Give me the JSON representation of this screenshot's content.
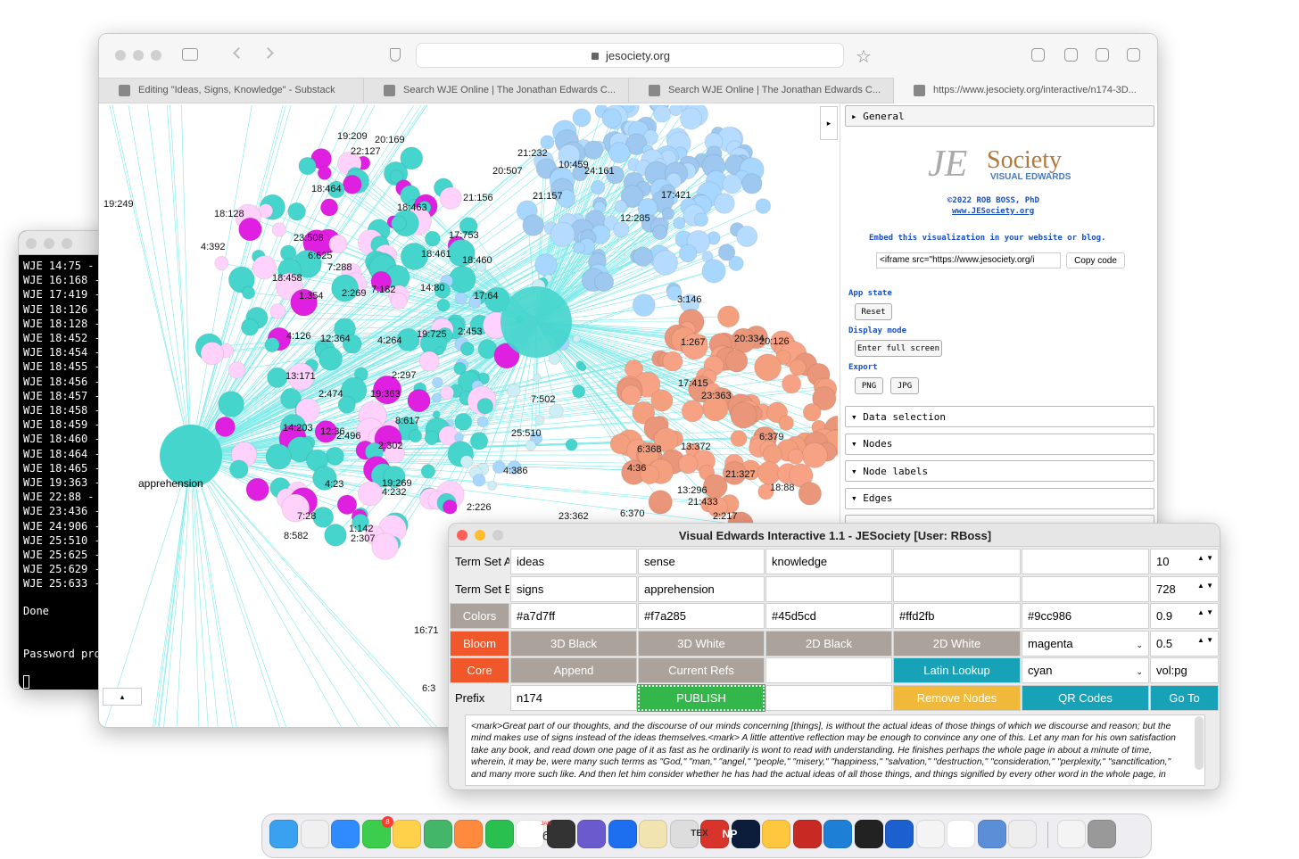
{
  "terminal": {
    "lines": [
      "WJE 14:75 - S",
      "WJE 16:168 -",
      "WJE 17:419 -",
      "WJE 18:126 -",
      "WJE 18:128 -",
      "WJE 18:452 -",
      "WJE 18:454 -",
      "WJE 18:455 -",
      "WJE 18:456 -",
      "WJE 18:457 -",
      "WJE 18:458 -",
      "WJE 18:459 -",
      "WJE 18:460 -",
      "WJE 18:464 -",
      "WJE 18:465 -",
      "WJE 19:363 -",
      "WJE 22:88 - S",
      "WJE 23:436 -",
      "WJE 24:906 -",
      "WJE 25:510 -",
      "WJE 25:625 -",
      "WJE 25:629 -",
      "WJE 25:633 -"
    ],
    "done": "Done",
    "password": "Password prot"
  },
  "browser": {
    "url": "jesociety.org",
    "tabs": [
      "Editing \"Ideas, Signs, Knowledge\" - Substack",
      "Search WJE Online | The Jonathan Edwards C...",
      "Search WJE Online | The Jonathan Edwards C...",
      "https://www.jesociety.org/interactive/n174-3D..."
    ]
  },
  "graph": {
    "hub_label": "apprehension",
    "labels": [
      "18:128",
      "4:392",
      "19:249",
      "19:209",
      "20:169",
      "22:127",
      "18:464",
      "18:463",
      "17:753",
      "18:460",
      "18:461",
      "6:625",
      "7:288",
      "18:458",
      "1:354",
      "2:269",
      "7:182",
      "14:80",
      "17:64",
      "4:126",
      "12:364",
      "4:264",
      "19:725",
      "2:453",
      "2:297",
      "2:474",
      "13:171",
      "19:363",
      "8:617",
      "2:302",
      "2:496",
      "12:36",
      "14:203",
      "7:502",
      "25:510",
      "4:386",
      "19:269",
      "4:232",
      "4:23",
      "2:226",
      "23:362",
      "21:327",
      "13:372",
      "6:368",
      "4:36",
      "6:370",
      "21:433",
      "2:217",
      "13:296",
      "18:88",
      "6:379",
      "23:363",
      "17:415",
      "20:126",
      "20:334",
      "1:267",
      "3:146",
      "12:285",
      "17:421",
      "10:459",
      "24:161",
      "21:232",
      "21:157",
      "21:156",
      "20:507",
      "23:508",
      "16:71",
      "6:3",
      "8:582",
      "2:307",
      "7:28",
      "1:142"
    ]
  },
  "panel": {
    "general": "▸ General",
    "logo_je": "JE",
    "logo_society": "Society",
    "logo_sub": "VISUAL EDWARDS",
    "copyright": "©2022 ROB BOSS, PhD",
    "site": "www.JESociety.org",
    "embed": "Embed this visualization in your website or blog.",
    "iframe": "<iframe src=\"https://www.jesociety.org/i",
    "copy": "Copy code",
    "app_state": "App state",
    "reset": "Reset",
    "display_mode": "Display mode",
    "fullscreen": "Enter full screen",
    "export": "Export",
    "png": "PNG",
    "jpg": "JPG",
    "folders": [
      "▾ Data selection",
      "▾ Nodes",
      "▾ Node labels",
      "▾ Edges"
    ]
  },
  "app": {
    "title": "Visual Edwards Interactive 1.1 - JESociety [User: RBoss]",
    "rows": [
      [
        {
          "t": "label",
          "text": "Term Set A"
        },
        {
          "t": "input",
          "text": "ideas"
        },
        {
          "t": "input",
          "text": "sense"
        },
        {
          "t": "input",
          "text": "knowledge"
        },
        {
          "t": "input"
        },
        {
          "t": "input"
        },
        {
          "t": "spin",
          "text": "10"
        }
      ],
      [
        {
          "t": "label",
          "text": "Term Set B"
        },
        {
          "t": "input",
          "text": "signs"
        },
        {
          "t": "input",
          "text": "apprehension"
        },
        {
          "t": "input"
        },
        {
          "t": "input"
        },
        {
          "t": "input"
        },
        {
          "t": "spin",
          "text": "728"
        }
      ],
      [
        {
          "t": "gray",
          "text": "Colors"
        },
        {
          "t": "input",
          "text": "#a7d7ff"
        },
        {
          "t": "input",
          "text": "#f7a285"
        },
        {
          "t": "input",
          "text": "#45d5cd"
        },
        {
          "t": "input",
          "text": "#ffd2fb"
        },
        {
          "t": "input",
          "text": "#9cc986"
        },
        {
          "t": "spin",
          "text": "0.9"
        }
      ],
      [
        {
          "t": "orange",
          "text": "Bloom"
        },
        {
          "t": "gray",
          "text": "3D Black"
        },
        {
          "t": "gray",
          "text": "3D White"
        },
        {
          "t": "gray",
          "text": "2D Black"
        },
        {
          "t": "gray",
          "text": "2D White"
        },
        {
          "t": "select",
          "text": "magenta"
        },
        {
          "t": "spin",
          "text": "0.5"
        }
      ],
      [
        {
          "t": "orange",
          "text": "Core"
        },
        {
          "t": "gray",
          "text": "Append"
        },
        {
          "t": "gray",
          "text": "Current Refs"
        },
        {
          "t": "input"
        },
        {
          "t": "teal",
          "text": "Latin Lookup"
        },
        {
          "t": "select",
          "text": "cyan"
        },
        {
          "t": "input",
          "text": "vol:pg"
        }
      ],
      [
        {
          "t": "label",
          "text": "Prefix"
        },
        {
          "t": "input",
          "text": "n174"
        },
        {
          "t": "green",
          "text": "PUBLISH"
        },
        {
          "t": "input"
        },
        {
          "t": "yellow",
          "text": "Remove Nodes"
        },
        {
          "t": "teal",
          "text": "QR Codes"
        },
        {
          "t": "teal",
          "text": "Go To"
        }
      ]
    ],
    "text": "<mark>Great part of our thoughts, and the discourse of our minds concerning [things], is without the actual ideas of those things of which we discourse and reason; but the mind makes use of signs instead of the ideas themselves.<mark> A little attentive reflection may be enough to convince any one of this. Let any man for his own satisfaction take any book, and read down one page of it as fast as he ordinarily is wont to read with understanding. He finishes perhaps the whole page in about a minute of time, wherein, it may be, were many such terms as \"God,\" \"man,\" \"angel,\" \"people,\" \"misery,\" \"happiness,\" \"salvation,\" \"destruction,\" \"consideration,\" \"perplexity,\" \"sanctification,\" and many more such like. And then let him consider whether he has had the actual ideas of all those things, and things signified by every other word in the whole page, in"
  },
  "dock": {
    "badge": "8",
    "cal_month": "JAN",
    "cal_day": "6",
    "tex": "TEX",
    "np": "NP"
  }
}
